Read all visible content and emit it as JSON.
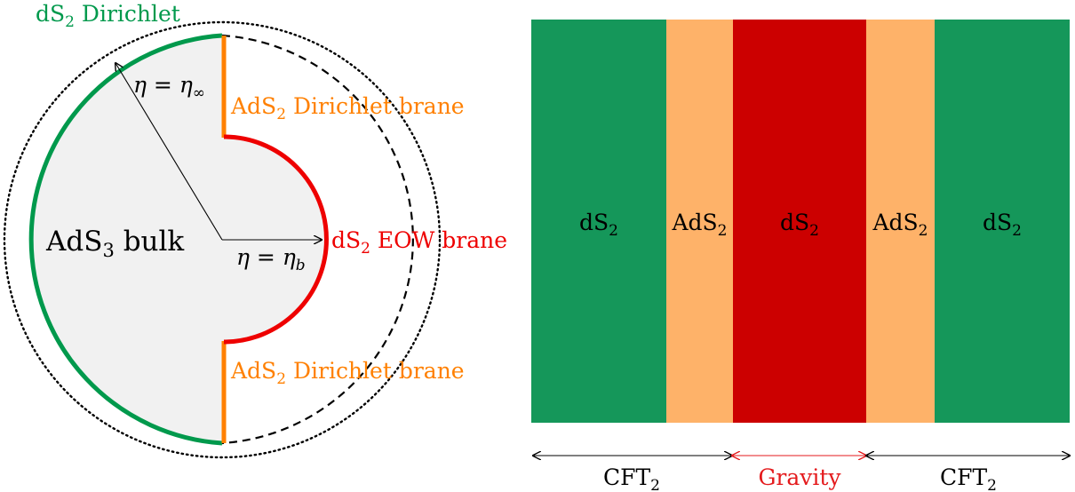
{
  "left_diagram": {
    "bulk_label": "AdS",
    "bulk_sub": "3",
    "bulk_suffix": " bulk",
    "dirichlet_label": "dS",
    "dirichlet_sub": "2",
    "dirichlet_suffix": " Dirichlet",
    "eow_label": "dS",
    "eow_sub": "2",
    "eow_suffix": " EOW brane",
    "ads_brane_top_label": "AdS",
    "ads_brane_top_sub": "2",
    "ads_brane_top_suffix": " Dirichlet brane",
    "ads_brane_bottom_label": "AdS",
    "ads_brane_bottom_sub": "2",
    "ads_brane_bottom_suffix": " Dirichlet brane",
    "eta_inf_label": "η = η",
    "eta_inf_sub": "∞",
    "eta_b_label": "η = η",
    "eta_b_sub": "b"
  },
  "right_diagram": {
    "strips": [
      {
        "label": "dS",
        "sub": "2",
        "color": "#15975a"
      },
      {
        "label": "AdS",
        "sub": "2",
        "color": "#feb269"
      },
      {
        "label": "dS",
        "sub": "2",
        "color": "#cc0000"
      },
      {
        "label": "AdS",
        "sub": "2",
        "color": "#feb269"
      },
      {
        "label": "dS",
        "sub": "2",
        "color": "#15975a"
      }
    ],
    "bottom_labels": [
      {
        "label": "CFT",
        "sub": "2",
        "color": "#000000"
      },
      {
        "label": "Gravity",
        "sub": "",
        "color": "#e41a1c"
      },
      {
        "label": "CFT",
        "sub": "2",
        "color": "#000000"
      }
    ]
  },
  "colors": {
    "green": "#00994c",
    "orange": "#ff8000",
    "red": "#ee0000",
    "bulk_fill": "#f1f1f1"
  }
}
